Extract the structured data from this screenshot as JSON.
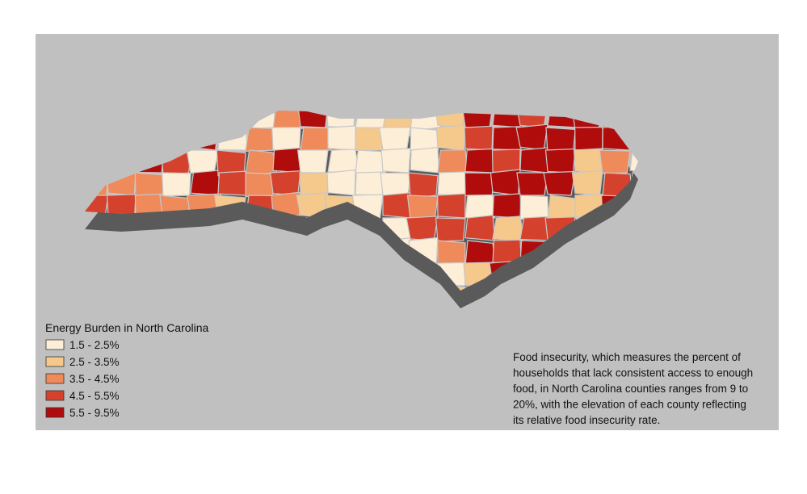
{
  "legend": {
    "title": "Energy Burden in North Carolina",
    "items": [
      {
        "label": "1.5 - 2.5%",
        "color": "#fdeed8"
      },
      {
        "label": "2.5 - 3.5%",
        "color": "#f5c88c"
      },
      {
        "label": "3.5 - 4.5%",
        "color": "#ef8a5a"
      },
      {
        "label": "4.5 - 5.5%",
        "color": "#d4422e"
      },
      {
        "label": "5.5 - 9.5%",
        "color": "#b00c0c"
      }
    ]
  },
  "description": {
    "lines": [
      "Food insecurity, which measures the percent of",
      "households that lack consistent access to enough",
      "food, in North Carolina counties ranges from 9 to",
      "20%, with the elevation of each county reflecting",
      "its relative food insecurity rate."
    ]
  }
}
